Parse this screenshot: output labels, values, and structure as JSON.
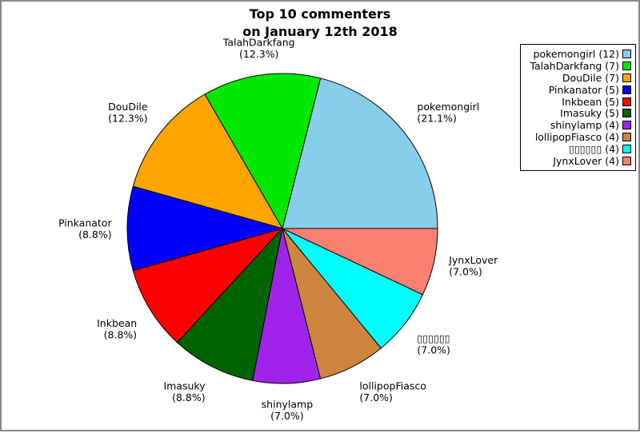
{
  "figure": {
    "background": "#ffffff",
    "border_color": "#878787"
  },
  "chart_data": {
    "type": "pie",
    "title_lines": [
      "Top 10 commenters",
      "on January 12th 2018"
    ],
    "start_angle_deg": 0,
    "direction": "counterclockwise",
    "legend_position": "upper right",
    "slices": [
      {
        "label": "pokemongirl",
        "count": 12,
        "percent": "21.1%",
        "color": "#87CEEB"
      },
      {
        "label": "TalahDarkfang",
        "count": 7,
        "percent": "12.3%",
        "color": "#00E800"
      },
      {
        "label": "DouDile",
        "count": 7,
        "percent": "12.3%",
        "color": "#FFA500"
      },
      {
        "label": "Pinkanator",
        "count": 5,
        "percent": "8.8%",
        "color": "#0000FA"
      },
      {
        "label": "Inkbean",
        "count": 5,
        "percent": "8.8%",
        "color": "#FF0000"
      },
      {
        "label": "Imasuky",
        "count": 5,
        "percent": "8.8%",
        "color": "#006400"
      },
      {
        "label": "shinylamp",
        "count": 4,
        "percent": "7.0%",
        "color": "#A023EC"
      },
      {
        "label": "lollipopFiasco",
        "count": 4,
        "percent": "7.0%",
        "color": "#CD853F"
      },
      {
        "label": "▯▯▯▯▯▯",
        "count": 4,
        "percent": "7.0%",
        "color": "#00FFFF"
      },
      {
        "label": "JynxLover",
        "count": 4,
        "percent": "7.0%",
        "color": "#FA8072"
      }
    ]
  }
}
